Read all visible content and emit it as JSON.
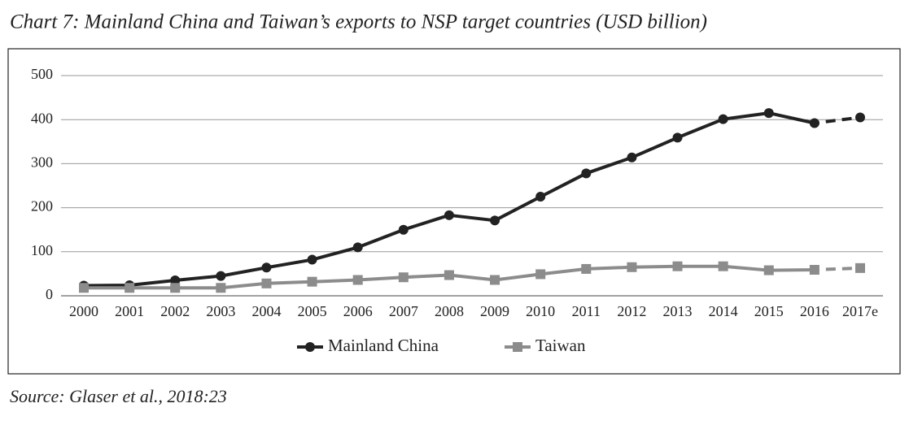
{
  "chart_data": {
    "type": "line",
    "title": "Chart 7: Mainland China and Taiwan’s exports to NSP target countries (USD billion)",
    "source": "Source: Glaser et al., 2018:23",
    "categories": [
      "2000",
      "2001",
      "2002",
      "2003",
      "2004",
      "2005",
      "2006",
      "2007",
      "2008",
      "2009",
      "2010",
      "2011",
      "2012",
      "2013",
      "2014",
      "2015",
      "2016",
      "2017e"
    ],
    "series": [
      {
        "name": "Mainland China",
        "color": "#222222",
        "marker": "circle",
        "dash_last": true,
        "values": [
          23,
          24,
          35,
          45,
          64,
          82,
          110,
          150,
          183,
          171,
          225,
          278,
          314,
          359,
          401,
          415,
          392,
          405
        ]
      },
      {
        "name": "Taiwan",
        "color": "#8c8c8c",
        "marker": "square",
        "dash_last": true,
        "values": [
          18,
          18,
          18,
          18,
          28,
          32,
          36,
          42,
          47,
          36,
          49,
          61,
          65,
          67,
          67,
          58,
          59,
          63
        ]
      }
    ],
    "ylim": [
      0,
      500
    ],
    "yticks": [
      0,
      100,
      200,
      300,
      400,
      500
    ],
    "grid": true,
    "legend": "bottom"
  }
}
